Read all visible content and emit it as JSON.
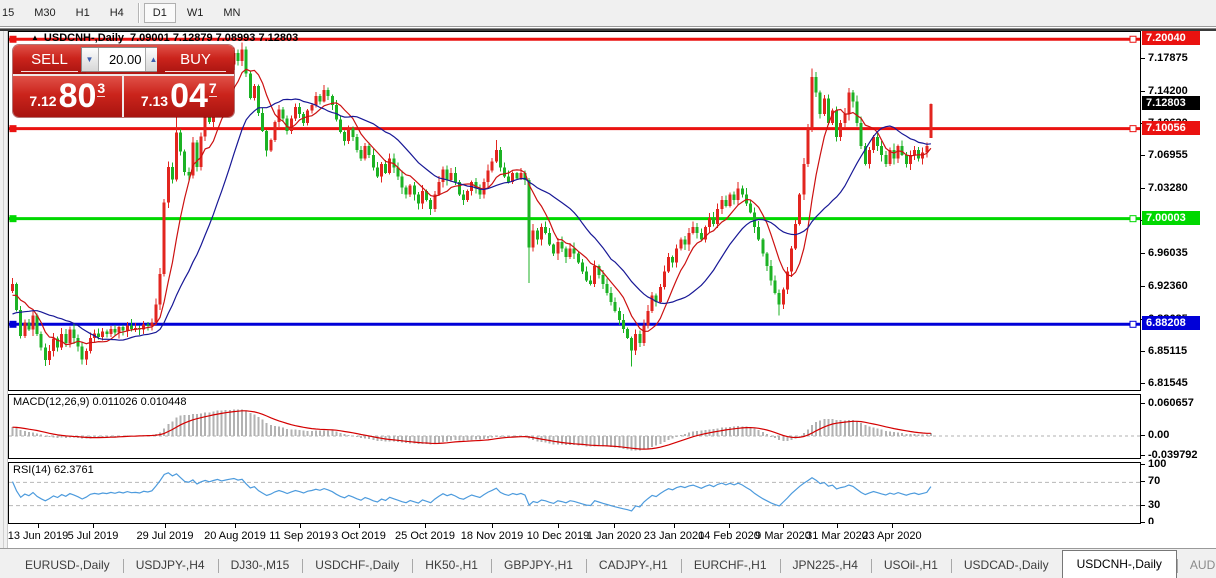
{
  "toolbar": {
    "timeframes": [
      "15",
      "M30",
      "H1",
      "H4",
      "D1",
      "W1",
      "MN"
    ],
    "active_timeframe": "D1"
  },
  "chart_header": {
    "marker": "▲",
    "symbol_period": "USDCNH-,Daily",
    "ohlc_text": "7.09001 7.12879 7.08993 7.12803"
  },
  "trade_panel": {
    "sell_label": "SELL",
    "buy_label": "BUY",
    "volume": "20.00",
    "spinner_down_icon": "▼",
    "spinner_up_icon": "▲",
    "sell_price_small": "7.12",
    "sell_price_big": "80",
    "sell_price_sup": "3",
    "buy_price_small": "7.13",
    "buy_price_big": "04",
    "buy_price_sup": "7"
  },
  "indicators": {
    "macd_label": "MACD(12,26,9) 0.011026 0.010448",
    "rsi_label": "RSI(14) 62.3761"
  },
  "axes": {
    "price_ticks": [
      7.17875,
      7.142,
      7.1063,
      7.06955,
      7.0328,
      6.9971,
      6.96035,
      6.9236,
      6.88685,
      6.85115,
      6.81545
    ],
    "price_tick_labels": [
      "7.17875",
      "7.14200",
      "7.10630",
      "7.06955",
      "7.03280",
      "6.99710",
      "6.96035",
      "6.92360",
      "6.88685",
      "6.85115",
      "6.81545"
    ],
    "macd_ticks": [
      {
        "label": "0.060657",
        "value": 0.060657
      },
      {
        "label": "0.00",
        "value": 0
      },
      {
        "label": "-0.039792",
        "value": -0.039792
      }
    ],
    "rsi_ticks": [
      {
        "label": "100",
        "value": 100
      },
      {
        "label": "70",
        "value": 70
      },
      {
        "label": "30",
        "value": 30
      },
      {
        "label": "0",
        "value": 0
      }
    ],
    "date_labels": [
      "13 Jun 2019",
      "5 Jul 2019",
      "29 Jul 2019",
      "20 Aug 2019",
      "11 Sep 2019",
      "3 Oct 2019",
      "25 Oct 2019",
      "18 Nov 2019",
      "10 Dec 2019",
      "1 Jan 2020",
      "23 Jan 2020",
      "14 Feb 2020",
      "9 Mar 2020",
      "31 Mar 2020",
      "23 Apr 2020"
    ]
  },
  "levels": [
    {
      "label": "7.20040",
      "price": 7.2004,
      "color": "#ea1210",
      "text_color": "#ffffff",
      "type": "hline"
    },
    {
      "label": "7.12803",
      "price": 7.12803,
      "color": "#000000",
      "text_color": "#ffffff",
      "type": "current"
    },
    {
      "label": "7.10056",
      "price": 7.10056,
      "color": "#ea1210",
      "text_color": "#ffffff",
      "type": "hline"
    },
    {
      "label": "7.00003",
      "price": 7.00003,
      "color": "#00d800",
      "text_color": "#ffffff",
      "type": "hline"
    },
    {
      "label": "6.88208",
      "price": 6.88208,
      "color": "#0000d8",
      "text_color": "#ffffff",
      "type": "hline"
    }
  ],
  "tabs": {
    "items": [
      "EURUSD-,Daily",
      "USDJPY-,H4",
      "DJ30-,M15",
      "USDCHF-,Daily",
      "HK50-,H1",
      "GBPJPY-,H1",
      "CADJPY-,H1",
      "EURCHF-,H1",
      "JPN225-,H4",
      "USOil-,H1",
      "USDCAD-,Daily",
      "USDCNH-,Daily"
    ],
    "active": "USDCNH-,Daily",
    "overflow_tab": "AUDU",
    "scroll_left_icon": "◄",
    "scroll_right_icon": "►"
  },
  "colors": {
    "bull_candle": "#e2251f",
    "bear_candle": "#1cb224",
    "ma_fast": "#cc1111",
    "ma_slow": "#181896",
    "macd_histogram": "#b2b2b2",
    "macd_signal": "#d40000",
    "rsi_line": "#4d9bdd",
    "hline_red": "#ea1210",
    "hline_green": "#00d800",
    "hline_blue": "#0000d8"
  },
  "chart_data": {
    "type": "candlestick",
    "symbol": "USDCNH",
    "period": "Daily",
    "title": "USDCNH-,Daily",
    "last_candle": {
      "open": 7.09001,
      "high": 7.12879,
      "low": 7.08993,
      "close": 7.12803
    },
    "price_range": {
      "top": 7.2085,
      "bottom": 6.8087
    },
    "hlines": [
      {
        "price": 7.2004,
        "color": "#ea1210"
      },
      {
        "price": 7.10056,
        "color": "#ea1210"
      },
      {
        "price": 7.00003,
        "color": "#00d800"
      },
      {
        "price": 6.88208,
        "color": "#0000d8"
      }
    ],
    "closes": [
      6.927,
      6.898,
      6.869,
      6.884,
      6.876,
      6.892,
      6.871,
      6.856,
      6.842,
      6.852,
      6.866,
      6.856,
      6.871,
      6.861,
      6.876,
      6.867,
      6.857,
      6.843,
      6.852,
      6.867,
      6.872,
      6.868,
      6.874,
      6.871,
      6.877,
      6.873,
      6.879,
      6.875,
      6.881,
      6.877,
      6.878,
      6.876,
      6.882,
      6.88,
      6.884,
      6.904,
      6.938,
      7.018,
      7.058,
      7.044,
      7.096,
      7.075,
      7.052,
      7.048,
      7.085,
      7.058,
      7.092,
      7.118,
      7.108,
      7.132,
      7.152,
      7.142,
      7.158,
      7.172,
      7.185,
      7.176,
      7.189,
      7.162,
      7.135,
      7.148,
      7.118,
      7.098,
      7.076,
      7.088,
      7.108,
      7.122,
      7.112,
      7.098,
      7.112,
      7.125,
      7.117,
      7.107,
      7.121,
      7.127,
      7.137,
      7.131,
      7.144,
      7.137,
      7.127,
      7.111,
      7.097,
      7.087,
      7.101,
      7.091,
      7.077,
      7.067,
      7.081,
      7.071,
      7.057,
      7.047,
      7.061,
      7.051,
      7.067,
      7.057,
      7.047,
      7.035,
      7.027,
      7.037,
      7.027,
      7.017,
      7.031,
      7.021,
      7.011,
      7.027,
      7.041,
      7.055,
      7.043,
      7.051,
      7.041,
      7.027,
      7.021,
      7.031,
      7.041,
      7.034,
      7.027,
      7.041,
      7.054,
      7.064,
      7.077,
      7.057,
      7.047,
      7.041,
      7.051,
      7.045,
      7.051,
      7.043,
      6.968,
      6.987,
      6.977,
      6.991,
      6.984,
      6.971,
      6.961,
      6.974,
      6.967,
      6.957,
      6.967,
      6.961,
      6.951,
      6.941,
      6.931,
      6.927,
      6.947,
      6.937,
      6.927,
      6.917,
      6.907,
      6.897,
      6.887,
      6.877,
      6.867,
      6.853,
      6.871,
      6.861,
      6.881,
      6.897,
      6.914,
      6.907,
      6.924,
      6.941,
      6.957,
      6.951,
      6.967,
      6.977,
      6.971,
      6.984,
      6.991,
      6.984,
      6.977,
      6.991,
      7.001,
      6.994,
      7.011,
      7.021,
      7.014,
      7.027,
      7.021,
      7.034,
      7.027,
      7.017,
      7.007,
      6.991,
      6.977,
      6.961,
      6.947,
      6.931,
      6.917,
      6.904,
      6.921,
      6.941,
      6.967,
      6.994,
      7.027,
      7.061,
      7.101,
      7.158,
      7.141,
      7.117,
      7.134,
      7.107,
      7.121,
      7.091,
      7.107,
      7.117,
      7.141,
      7.131,
      7.107,
      7.081,
      7.061,
      7.077,
      7.091,
      7.081,
      7.071,
      7.061,
      7.077,
      7.067,
      7.081,
      7.071,
      7.061,
      7.071,
      7.077,
      7.067,
      7.074,
      7.081,
      7.12803
    ],
    "wick_overrides": {
      "40": {
        "h": 7.142
      },
      "52": {
        "h": 7.178
      },
      "56": {
        "h": 7.1965
      },
      "118": {
        "h": 7.088
      },
      "126": {
        "l": 6.928
      },
      "151": {
        "l": 6.835
      },
      "187": {
        "l": 6.892
      },
      "195": {
        "h": 7.168
      },
      "224": {
        "o": 7.09001,
        "h": 7.12879,
        "l": 7.08993,
        "c": 7.12803
      }
    },
    "moving_averages": [
      {
        "period": 8,
        "color": "#cc1111"
      },
      {
        "period": 21,
        "color": "#181896"
      }
    ],
    "macd": {
      "params": [
        12,
        26,
        9
      ],
      "value": 0.011026,
      "signal_value": 0.010448,
      "axis": [
        0.060657,
        0,
        -0.039792
      ]
    },
    "rsi": {
      "period": 14,
      "value": 62.3761,
      "levels": [
        70,
        30
      ]
    }
  }
}
